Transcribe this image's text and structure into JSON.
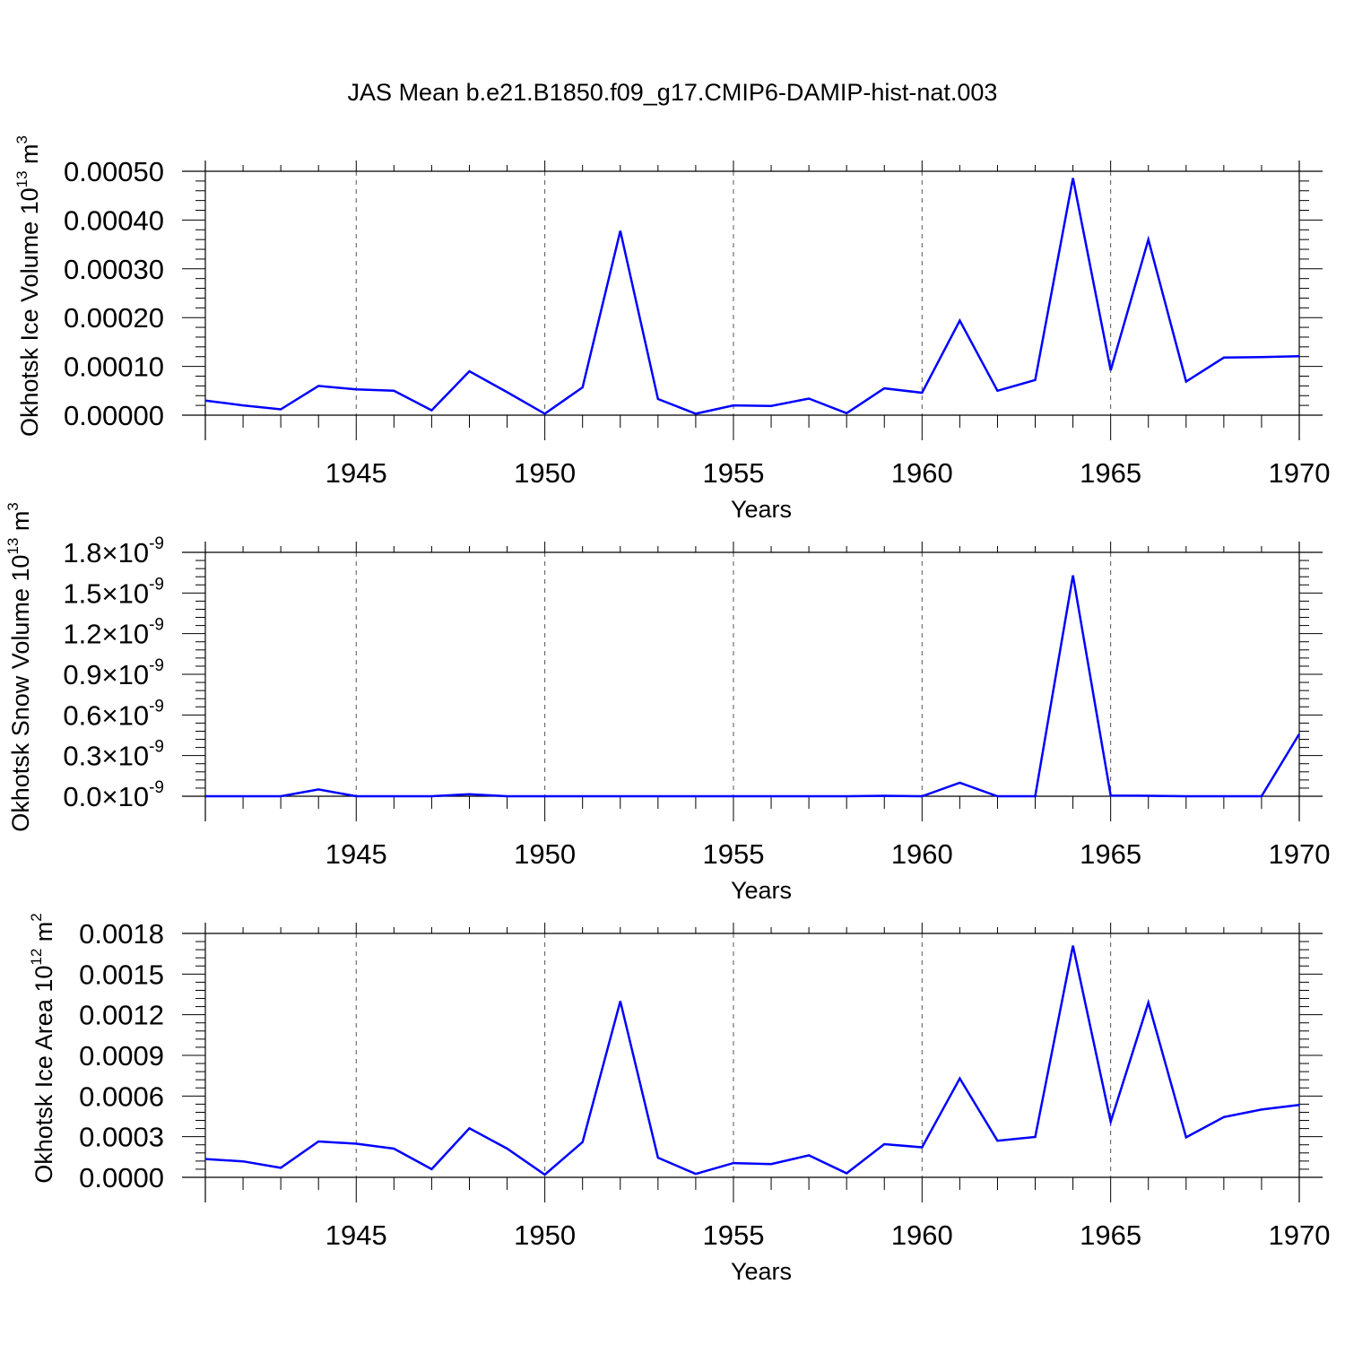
{
  "title": "JAS Mean b.e21.B1850.f09_g17.CMIP6-DAMIP-hist-nat.003",
  "line_color": "#0000ff",
  "chart_data": [
    {
      "type": "line",
      "ylabel": "Okhotsk Ice Volume 10",
      "ylabel_exponent": "13",
      "ylabel_unit": "m",
      "ylabel_unit_exponent": "3",
      "xlabel": "Years",
      "xlim": [
        1941,
        1970
      ],
      "ylim": [
        0,
        0.0005
      ],
      "x_ticks": [
        1945,
        1950,
        1955,
        1960,
        1965,
        1970
      ],
      "x_tick_labels": [
        "1945",
        "1950",
        "1955",
        "1960",
        "1965",
        "1970"
      ],
      "y_ticks": [
        0,
        0.0001,
        0.0002,
        0.0003,
        0.0004,
        0.0005
      ],
      "y_tick_labels": [
        "0.00000",
        "0.00010",
        "0.00020",
        "0.00030",
        "0.00040",
        "0.00050"
      ],
      "x": [
        1941,
        1942,
        1943,
        1944,
        1945,
        1946,
        1947,
        1948,
        1949,
        1950,
        1951,
        1952,
        1953,
        1954,
        1955,
        1956,
        1957,
        1958,
        1959,
        1960,
        1961,
        1962,
        1963,
        1964,
        1965,
        1966,
        1967,
        1968,
        1969,
        1970
      ],
      "series": [
        {
          "name": "Okhotsk Ice Volume",
          "values": [
            3e-05,
            2e-05,
            1.2e-05,
            6e-05,
            5.3e-05,
            5e-05,
            1e-05,
            9e-05,
            4.7e-05,
            3e-06,
            5.7e-05,
            0.000378,
            3.3e-05,
            3e-06,
            2e-05,
            1.9e-05,
            3.4e-05,
            4e-06,
            5.5e-05,
            4.6e-05,
            0.000194,
            5e-05,
            7.2e-05,
            0.000486,
            9.2e-05,
            0.00036,
            6.9e-05,
            0.000118,
            0.000119,
            0.000121
          ]
        }
      ]
    },
    {
      "type": "line",
      "ylabel": "Okhotsk Snow Volume 10",
      "ylabel_exponent": "13",
      "ylabel_unit": "m",
      "ylabel_unit_exponent": "3",
      "xlabel": "Years",
      "xlim": [
        1941,
        1970
      ],
      "ylim": [
        0,
        1.8e-09
      ],
      "x_ticks": [
        1945,
        1950,
        1955,
        1960,
        1965,
        1970
      ],
      "x_tick_labels": [
        "1945",
        "1950",
        "1955",
        "1960",
        "1965",
        "1970"
      ],
      "y_ticks": [
        0,
        3e-10,
        6e-10,
        9e-10,
        1.2e-09,
        1.5e-09,
        1.8e-09
      ],
      "y_tick_labels": [
        "0.0",
        "0.3",
        "0.6",
        "0.9",
        "1.2",
        "1.5",
        "1.8"
      ],
      "y_tick_multiplier": "×10",
      "y_tick_exponent": "-9",
      "x": [
        1941,
        1942,
        1943,
        1944,
        1945,
        1946,
        1947,
        1948,
        1949,
        1950,
        1951,
        1952,
        1953,
        1954,
        1955,
        1956,
        1957,
        1958,
        1959,
        1960,
        1961,
        1962,
        1963,
        1964,
        1965,
        1966,
        1967,
        1968,
        1969,
        1970
      ],
      "series": [
        {
          "name": "Okhotsk Snow Volume",
          "values": [
            0,
            0,
            0,
            5e-11,
            0,
            0,
            0,
            1.5e-11,
            0,
            0,
            0,
            0,
            0,
            0,
            0,
            0,
            0,
            0,
            3e-12,
            0,
            1e-10,
            0,
            0,
            1.63e-09,
            5e-12,
            3e-12,
            0,
            0,
            0,
            4.6e-10
          ]
        }
      ]
    },
    {
      "type": "line",
      "ylabel": "Okhotsk Ice Area 10",
      "ylabel_exponent": "12",
      "ylabel_unit": "m",
      "ylabel_unit_exponent": "2",
      "xlabel": "Years",
      "xlim": [
        1941,
        1970
      ],
      "ylim": [
        0,
        0.0018
      ],
      "x_ticks": [
        1945,
        1950,
        1955,
        1960,
        1965,
        1970
      ],
      "x_tick_labels": [
        "1945",
        "1950",
        "1955",
        "1960",
        "1965",
        "1970"
      ],
      "y_ticks": [
        0,
        0.0003,
        0.0006,
        0.0009,
        0.0012,
        0.0015,
        0.0018
      ],
      "y_tick_labels": [
        "0.0000",
        "0.0003",
        "0.0006",
        "0.0009",
        "0.0012",
        "0.0015",
        "0.0018"
      ],
      "x": [
        1941,
        1942,
        1943,
        1944,
        1945,
        1946,
        1947,
        1948,
        1949,
        1950,
        1951,
        1952,
        1953,
        1954,
        1955,
        1956,
        1957,
        1958,
        1959,
        1960,
        1961,
        1962,
        1963,
        1964,
        1965,
        1966,
        1967,
        1968,
        1969,
        1970
      ],
      "series": [
        {
          "name": "Okhotsk Ice Area",
          "values": [
            0.000135,
            0.000118,
            7e-05,
            0.000265,
            0.000248,
            0.000212,
            6e-05,
            0.000362,
            0.000212,
            2e-05,
            0.00026,
            0.0013,
            0.000145,
            2.5e-05,
            0.000105,
            9.8e-05,
            0.000162,
            3e-05,
            0.000245,
            0.000222,
            0.00073,
            0.00027,
            0.000298,
            0.00171,
            0.00041,
            0.00129,
            0.000295,
            0.000445,
            0.0005,
            0.000535
          ]
        }
      ]
    }
  ]
}
